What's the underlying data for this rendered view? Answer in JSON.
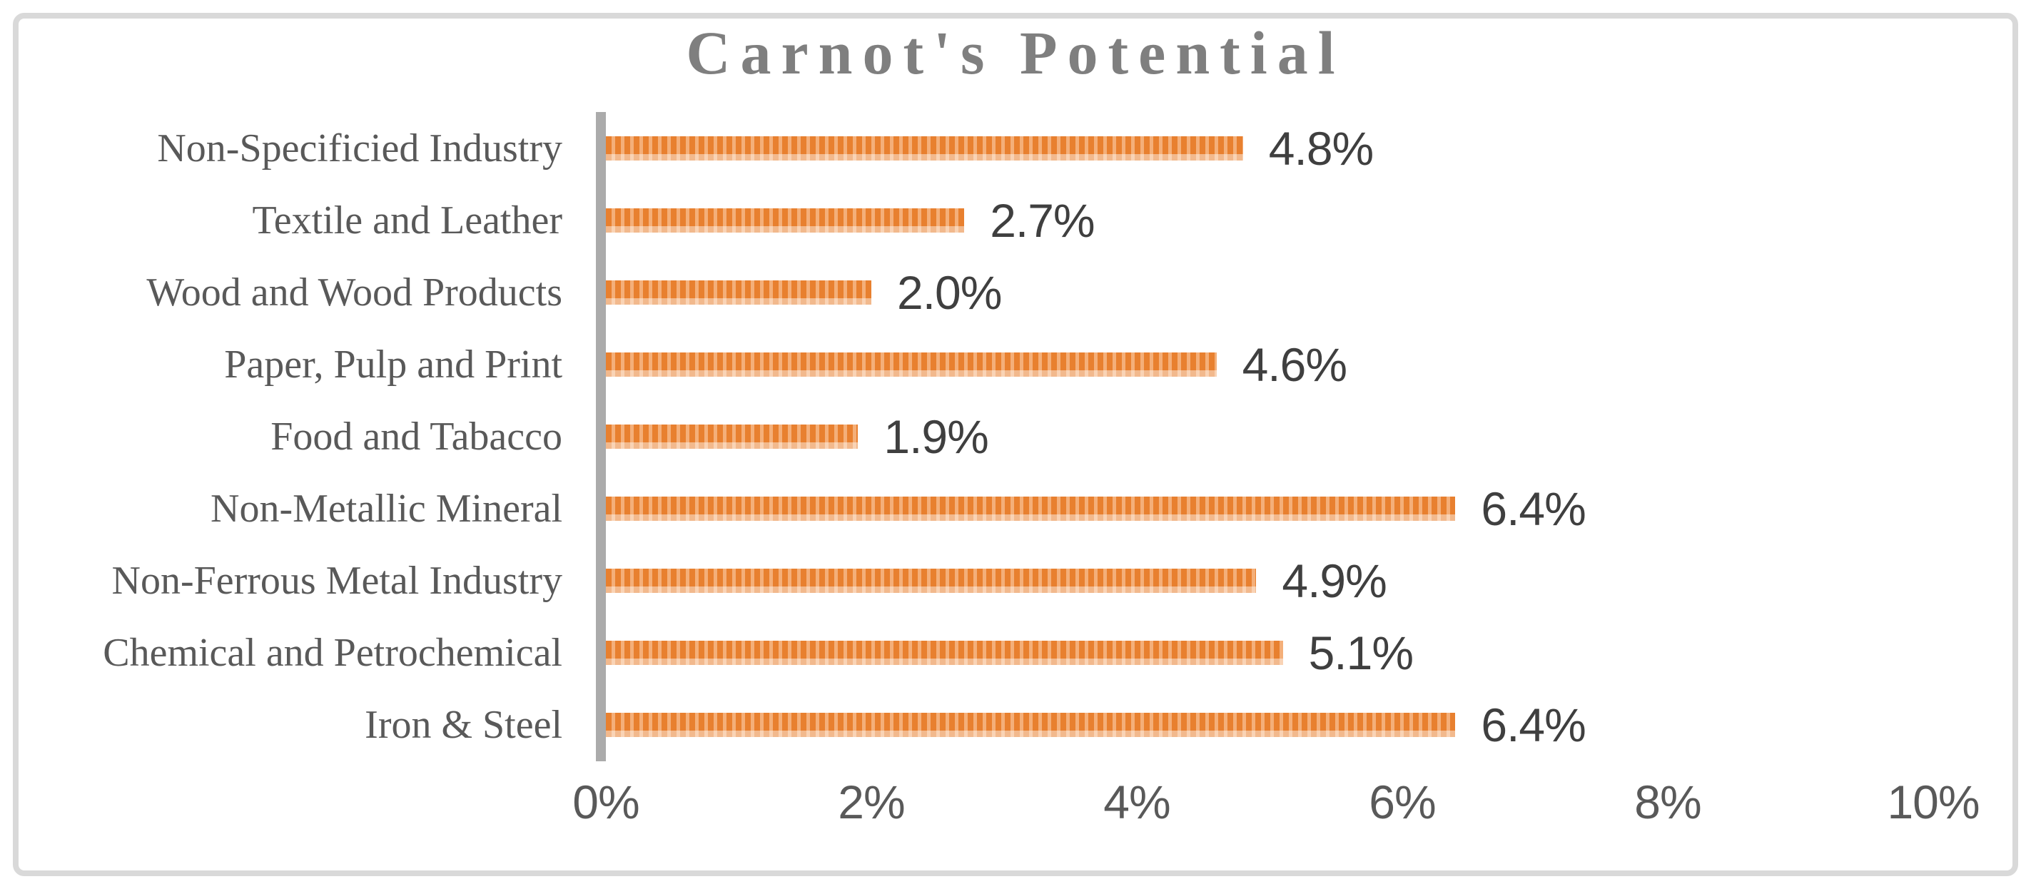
{
  "chart_data": {
    "type": "bar",
    "orientation": "horizontal",
    "title": "Carnot's Potential",
    "categories": [
      "Non-Specificied Industry",
      "Textile and Leather",
      "Wood and Wood Products",
      "Paper, Pulp and Print",
      "Food and Tabacco",
      "Non-Metallic Mineral",
      "Non-Ferrous Metal Industry",
      "Chemical and Petrochemical",
      "Iron & Steel"
    ],
    "values": [
      4.8,
      2.7,
      2.0,
      4.6,
      1.9,
      6.4,
      4.9,
      5.1,
      6.4
    ],
    "value_labels": [
      "4.8%",
      "2.7%",
      "2.0%",
      "4.6%",
      "1.9%",
      "6.4%",
      "4.9%",
      "5.1%",
      "6.4%"
    ],
    "x_ticks": [
      "0%",
      "2%",
      "4%",
      "6%",
      "8%",
      "10%"
    ],
    "x_tick_values": [
      0,
      2,
      4,
      6,
      8,
      10
    ],
    "xlim": [
      0,
      10
    ],
    "grid": false,
    "legend": false,
    "bar_pattern": "dashed-vertical",
    "colors": {
      "bar_dark": "#E8802F",
      "bar_light": "#F4AF79",
      "title": "#7F7F7F",
      "category_label": "#595959",
      "value_label": "#3F3F3F",
      "tick_label": "#595959",
      "axis_line": "#ABABAB",
      "border": "#D9D9D9"
    }
  }
}
